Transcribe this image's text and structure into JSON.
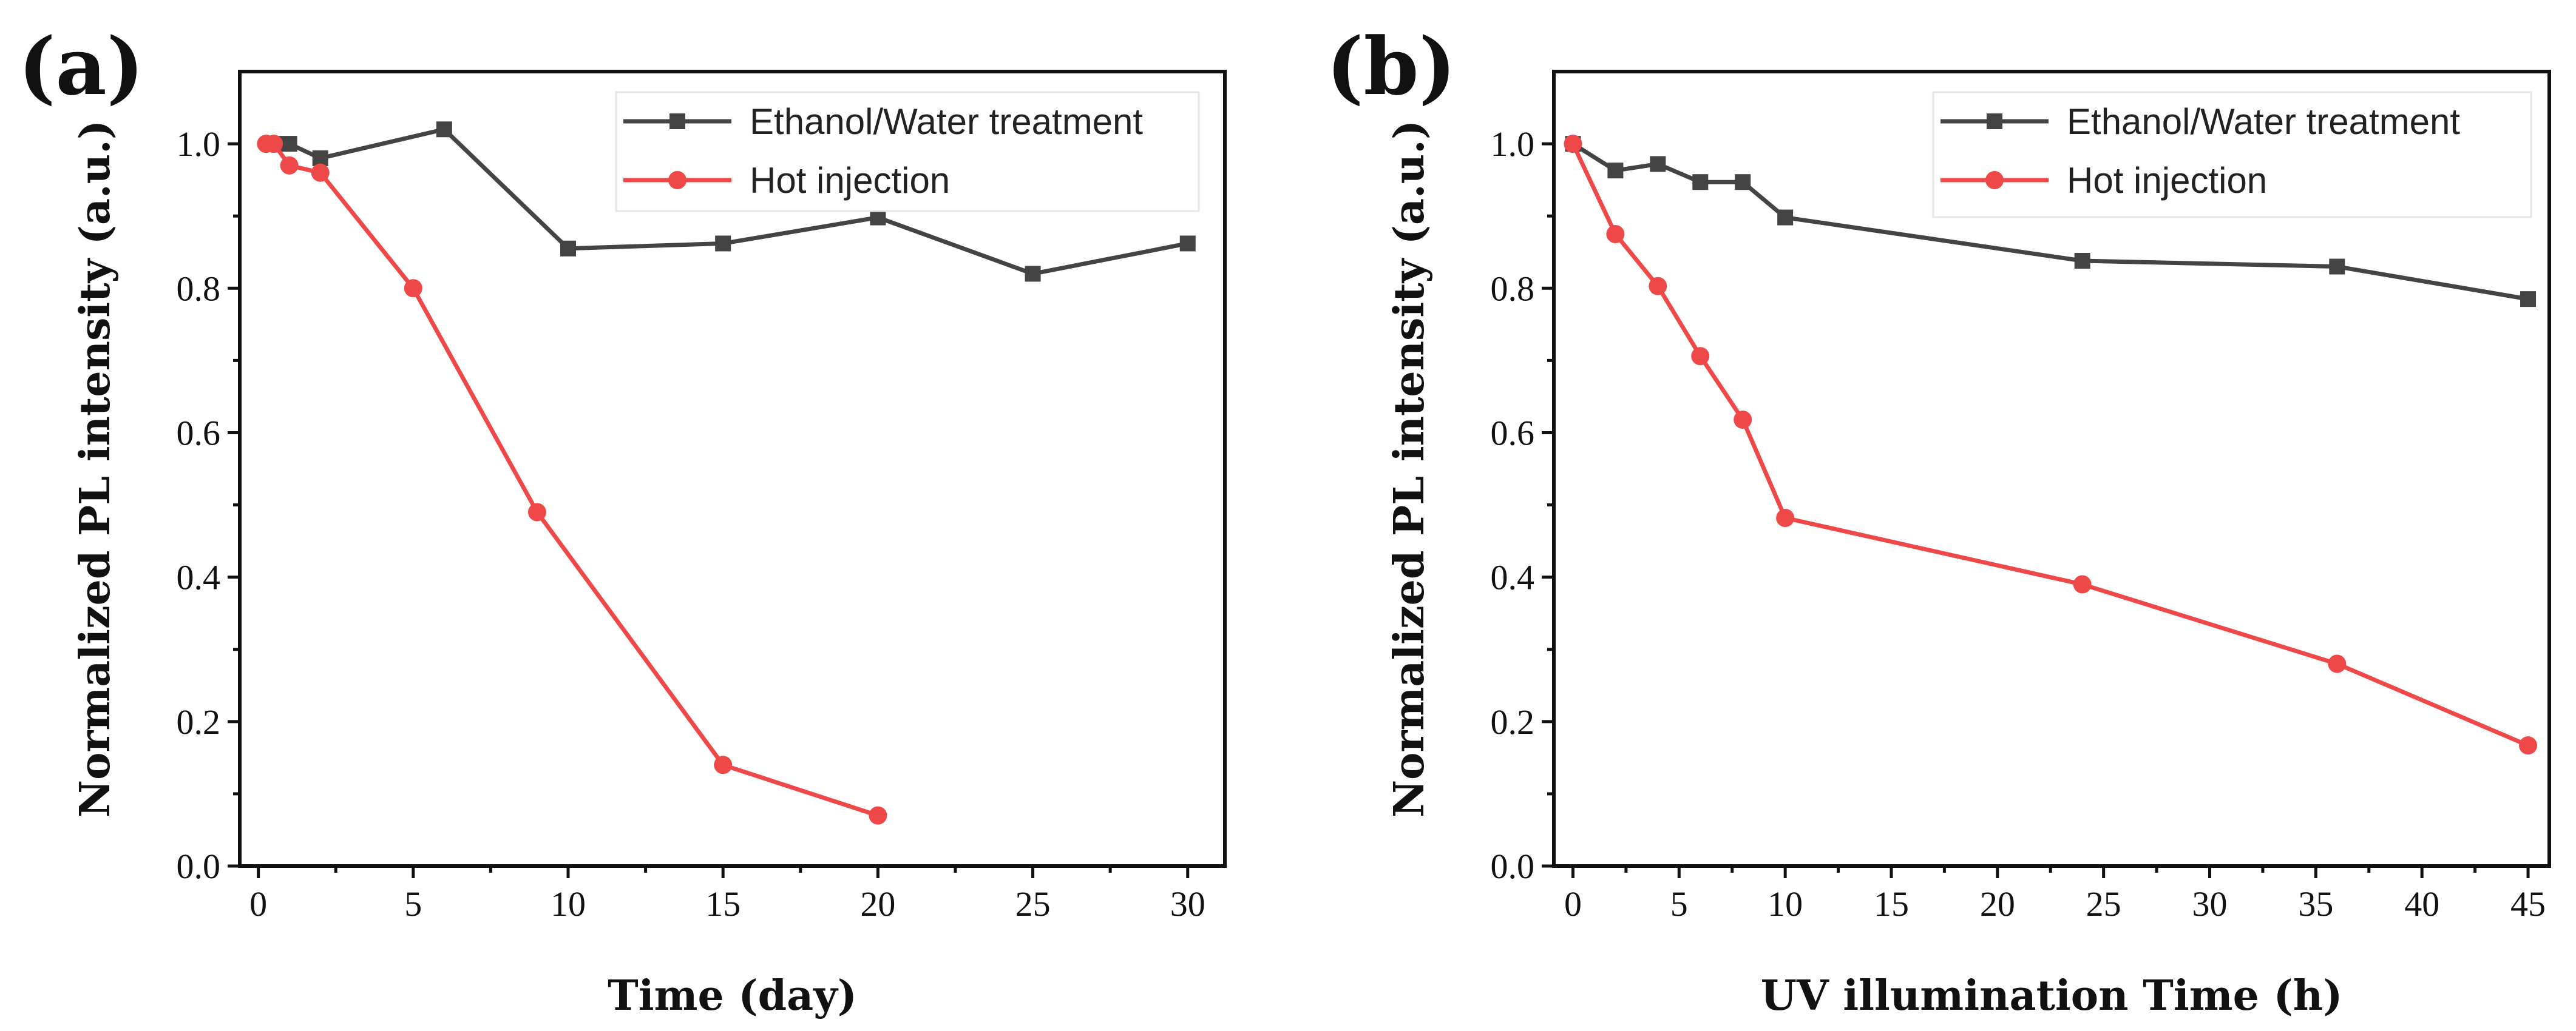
{
  "chart_data": [
    {
      "id": "a",
      "panel_label": "(a)",
      "type": "line",
      "xlabel": "Time (day)",
      "ylabel": "Normalized PL intensity (a.u.)",
      "xlim": [
        -0.6,
        31.2
      ],
      "ylim": [
        0.0,
        1.1
      ],
      "xticks": [
        0,
        5,
        10,
        15,
        20,
        25,
        30
      ],
      "yticks": [
        0.0,
        0.2,
        0.4,
        0.6,
        0.8,
        1.0
      ],
      "xtick_labels": [
        "0",
        "5",
        "10",
        "15",
        "20",
        "25",
        "30"
      ],
      "ytick_labels": [
        "0.0",
        "0.2",
        "0.4",
        "0.6",
        "0.8",
        "1.0"
      ],
      "legend_position": "top-right",
      "series": [
        {
          "name": "Ethanol/Water treatment",
          "marker": "square",
          "color": "#444444",
          "x": [
            0.5,
            1,
            2,
            6,
            10,
            15,
            20,
            25,
            30
          ],
          "y": [
            1.0,
            1.0,
            0.98,
            1.02,
            0.855,
            0.862,
            0.898,
            0.82,
            0.862
          ]
        },
        {
          "name": "Hot injection",
          "marker": "circle",
          "color": "#ef4848",
          "x": [
            0.25,
            0.5,
            1,
            2,
            5,
            9,
            15,
            20
          ],
          "y": [
            1.0,
            1.0,
            0.97,
            0.96,
            0.8,
            0.49,
            0.14,
            0.07
          ]
        }
      ]
    },
    {
      "id": "b",
      "panel_label": "(b)",
      "type": "line",
      "xlabel": "UV illumination Time  (h)",
      "ylabel": "Normalized PL intensity (a.u.)",
      "xlim": [
        -0.9,
        46.0
      ],
      "ylim": [
        0.0,
        1.1
      ],
      "xticks": [
        0,
        5,
        10,
        15,
        20,
        25,
        30,
        35,
        40,
        45
      ],
      "yticks": [
        0.0,
        0.2,
        0.4,
        0.6,
        0.8,
        1.0
      ],
      "xtick_labels": [
        "0",
        "5",
        "10",
        "15",
        "20",
        "25",
        "30",
        "35",
        "40",
        "45"
      ],
      "ytick_labels": [
        "0.0",
        "0.2",
        "0.4",
        "0.6",
        "0.8",
        "1.0"
      ],
      "legend_position": "top-right",
      "series": [
        {
          "name": "Ethanol/Water treatment",
          "marker": "square",
          "color": "#444444",
          "x": [
            0,
            2,
            4,
            6,
            8,
            10,
            24,
            36,
            45
          ],
          "y": [
            1.0,
            0.963,
            0.972,
            0.947,
            0.947,
            0.898,
            0.838,
            0.83,
            0.785
          ]
        },
        {
          "name": "Hot injection",
          "marker": "circle",
          "color": "#ef4848",
          "x": [
            0,
            2,
            4,
            6,
            8,
            10,
            24,
            36,
            45
          ],
          "y": [
            1.0,
            0.875,
            0.803,
            0.706,
            0.618,
            0.482,
            0.39,
            0.28,
            0.167
          ]
        }
      ]
    }
  ]
}
